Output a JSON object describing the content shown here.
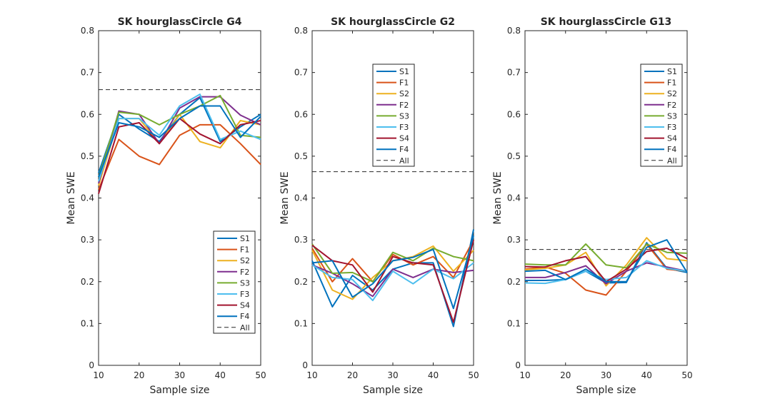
{
  "figure_background": "#ffffff",
  "chart_data": [
    {
      "type": "line",
      "title": "SK hourglassCircle G4",
      "xlabel": "Sample size",
      "ylabel": "Mean SWE",
      "xlim": [
        10,
        50
      ],
      "ylim": [
        0,
        0.8
      ],
      "xticks": [
        "10",
        "20",
        "30",
        "40",
        "50"
      ],
      "yticks": [
        "0",
        "0.1",
        "0.2",
        "0.3",
        "0.4",
        "0.5",
        "0.6",
        "0.7",
        "0.8"
      ],
      "grid": false,
      "legend_position": "bottom-right",
      "x": [
        10,
        15,
        20,
        25,
        30,
        35,
        40,
        45,
        50
      ],
      "series": [
        {
          "name": "S1",
          "color": "#0072BD",
          "values": [
            0.46,
            0.6,
            0.565,
            0.535,
            0.6,
            0.64,
            0.535,
            0.57,
            0.6
          ]
        },
        {
          "name": "F1",
          "color": "#D95319",
          "values": [
            0.42,
            0.54,
            0.5,
            0.48,
            0.55,
            0.575,
            0.575,
            0.53,
            0.48
          ]
        },
        {
          "name": "S2",
          "color": "#EDB120",
          "values": [
            0.43,
            0.59,
            0.59,
            0.53,
            0.6,
            0.535,
            0.52,
            0.585,
            0.575
          ]
        },
        {
          "name": "F2",
          "color": "#7E2F8E",
          "values": [
            0.435,
            0.608,
            0.6,
            0.53,
            0.615,
            0.642,
            0.642,
            0.598,
            0.575
          ]
        },
        {
          "name": "S3",
          "color": "#77AC30",
          "values": [
            0.45,
            0.605,
            0.6,
            0.575,
            0.6,
            0.62,
            0.645,
            0.55,
            0.545
          ]
        },
        {
          "name": "F3",
          "color": "#4DBEEE",
          "values": [
            0.44,
            0.59,
            0.59,
            0.55,
            0.62,
            0.648,
            0.54,
            0.56,
            0.54
          ]
        },
        {
          "name": "S4",
          "color": "#A2142F",
          "values": [
            0.41,
            0.57,
            0.58,
            0.53,
            0.59,
            0.553,
            0.53,
            0.575,
            0.585
          ]
        },
        {
          "name": "F4",
          "color": "#0072BD",
          "values": [
            0.45,
            0.58,
            0.57,
            0.545,
            0.59,
            0.62,
            0.62,
            0.545,
            0.595
          ]
        }
      ],
      "reference": {
        "name": "All",
        "value": 0.659,
        "color": "#262626"
      }
    },
    {
      "type": "line",
      "title": "SK hourglassCircle G2",
      "xlabel": "Sample size",
      "ylabel": "Mean SWE",
      "xlim": [
        10,
        50
      ],
      "ylim": [
        0,
        0.8
      ],
      "xticks": [
        "10",
        "20",
        "30",
        "40",
        "50"
      ],
      "yticks": [
        "0",
        "0.1",
        "0.2",
        "0.3",
        "0.4",
        "0.5",
        "0.6",
        "0.7",
        "0.8"
      ],
      "grid": false,
      "legend_position": "top-center",
      "x": [
        10,
        15,
        20,
        25,
        30,
        35,
        40,
        45,
        50
      ],
      "series": [
        {
          "name": "S1",
          "color": "#0072BD",
          "values": [
            0.25,
            0.14,
            0.215,
            0.18,
            0.23,
            0.245,
            0.245,
            0.093,
            0.325
          ]
        },
        {
          "name": "F1",
          "color": "#D95319",
          "values": [
            0.28,
            0.2,
            0.255,
            0.2,
            0.265,
            0.24,
            0.26,
            0.21,
            0.3
          ]
        },
        {
          "name": "S2",
          "color": "#EDB120",
          "values": [
            0.275,
            0.18,
            0.158,
            0.21,
            0.25,
            0.26,
            0.285,
            0.225,
            0.275
          ]
        },
        {
          "name": "F2",
          "color": "#7E2F8E",
          "values": [
            0.24,
            0.22,
            0.195,
            0.165,
            0.23,
            0.21,
            0.23,
            0.222,
            0.227
          ]
        },
        {
          "name": "S3",
          "color": "#77AC30",
          "values": [
            0.29,
            0.22,
            0.222,
            0.2,
            0.27,
            0.25,
            0.28,
            0.26,
            0.25
          ]
        },
        {
          "name": "F3",
          "color": "#4DBEEE",
          "values": [
            0.24,
            0.21,
            0.205,
            0.155,
            0.225,
            0.195,
            0.23,
            0.207,
            0.245
          ]
        },
        {
          "name": "S4",
          "color": "#A2142F",
          "values": [
            0.287,
            0.25,
            0.24,
            0.175,
            0.26,
            0.245,
            0.24,
            0.103,
            0.3
          ]
        },
        {
          "name": "F4",
          "color": "#0072BD",
          "values": [
            0.245,
            0.25,
            0.163,
            0.195,
            0.25,
            0.258,
            0.277,
            0.136,
            0.31
          ]
        }
      ],
      "reference": {
        "name": "All",
        "value": 0.463,
        "color": "#262626"
      }
    },
    {
      "type": "line",
      "title": "SK hourglassCircle G13",
      "xlabel": "Sample size",
      "ylabel": "Mean SWE",
      "xlim": [
        10,
        50
      ],
      "ylim": [
        0,
        0.8
      ],
      "xticks": [
        "10",
        "20",
        "30",
        "40",
        "50"
      ],
      "yticks": [
        "0",
        "0.1",
        "0.2",
        "0.3",
        "0.4",
        "0.5",
        "0.6",
        "0.7",
        "0.8"
      ],
      "grid": false,
      "legend_position": "top-right",
      "x": [
        10,
        15,
        20,
        25,
        30,
        35,
        40,
        45,
        50
      ],
      "series": [
        {
          "name": "S1",
          "color": "#0072BD",
          "values": [
            0.203,
            0.203,
            0.205,
            0.225,
            0.197,
            0.198,
            0.293,
            0.232,
            0.222
          ]
        },
        {
          "name": "F1",
          "color": "#D95319",
          "values": [
            0.23,
            0.235,
            0.22,
            0.18,
            0.168,
            0.225,
            0.29,
            0.23,
            0.225
          ]
        },
        {
          "name": "S2",
          "color": "#EDB120",
          "values": [
            0.228,
            0.232,
            0.24,
            0.27,
            0.19,
            0.24,
            0.305,
            0.255,
            0.25
          ]
        },
        {
          "name": "F2",
          "color": "#7E2F8E",
          "values": [
            0.21,
            0.21,
            0.222,
            0.238,
            0.195,
            0.225,
            0.245,
            0.235,
            0.225
          ]
        },
        {
          "name": "S3",
          "color": "#77AC30",
          "values": [
            0.242,
            0.24,
            0.24,
            0.29,
            0.24,
            0.233,
            0.29,
            0.27,
            0.268
          ]
        },
        {
          "name": "F3",
          "color": "#4DBEEE",
          "values": [
            0.197,
            0.196,
            0.205,
            0.225,
            0.205,
            0.21,
            0.25,
            0.232,
            0.225
          ]
        },
        {
          "name": "S4",
          "color": "#A2142F",
          "values": [
            0.236,
            0.235,
            0.25,
            0.26,
            0.2,
            0.23,
            0.272,
            0.28,
            0.255
          ]
        },
        {
          "name": "F4",
          "color": "#0072BD",
          "values": [
            0.225,
            0.227,
            0.205,
            0.23,
            0.2,
            0.2,
            0.282,
            0.3,
            0.222
          ]
        }
      ],
      "reference": {
        "name": "All",
        "value": 0.277,
        "color": "#262626"
      }
    }
  ]
}
